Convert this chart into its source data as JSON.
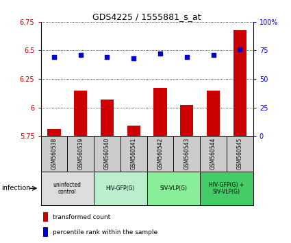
{
  "title": "GDS4225 / 1555881_s_at",
  "samples": [
    "GSM560538",
    "GSM560539",
    "GSM560540",
    "GSM560541",
    "GSM560542",
    "GSM560543",
    "GSM560544",
    "GSM560545"
  ],
  "bar_values": [
    5.81,
    6.15,
    6.07,
    5.84,
    6.17,
    6.02,
    6.15,
    6.68
  ],
  "dot_values": [
    69,
    71,
    69,
    68,
    72,
    69,
    71,
    76
  ],
  "bar_color": "#cc0000",
  "dot_color": "#0000cc",
  "ylim_left": [
    5.75,
    6.75
  ],
  "ylim_right": [
    0,
    100
  ],
  "yticks_left": [
    5.75,
    6.0,
    6.25,
    6.5,
    6.75
  ],
  "ytick_labels_left": [
    "5.75",
    "6",
    "6.25",
    "6.5",
    "6.75"
  ],
  "yticks_right": [
    0,
    25,
    50,
    75,
    100
  ],
  "ytick_labels_right": [
    "0",
    "25",
    "50",
    "75",
    "100%"
  ],
  "groups": [
    {
      "label": "uninfected\ncontrol",
      "start": 0,
      "end": 2,
      "color": "#dddddd"
    },
    {
      "label": "HIV-GFP(G)",
      "start": 2,
      "end": 4,
      "color": "#bbeecc"
    },
    {
      "label": "SIV-VLP(G)",
      "start": 4,
      "end": 6,
      "color": "#88ee99"
    },
    {
      "label": "HIV-GFP(G) +\nSIV-VLP(G)",
      "start": 6,
      "end": 8,
      "color": "#44cc66"
    }
  ],
  "infection_label": "infection",
  "legend_bar_label": "transformed count",
  "legend_dot_label": "percentile rank within the sample",
  "bg_color": "#ffffff",
  "sample_box_color": "#cccccc"
}
